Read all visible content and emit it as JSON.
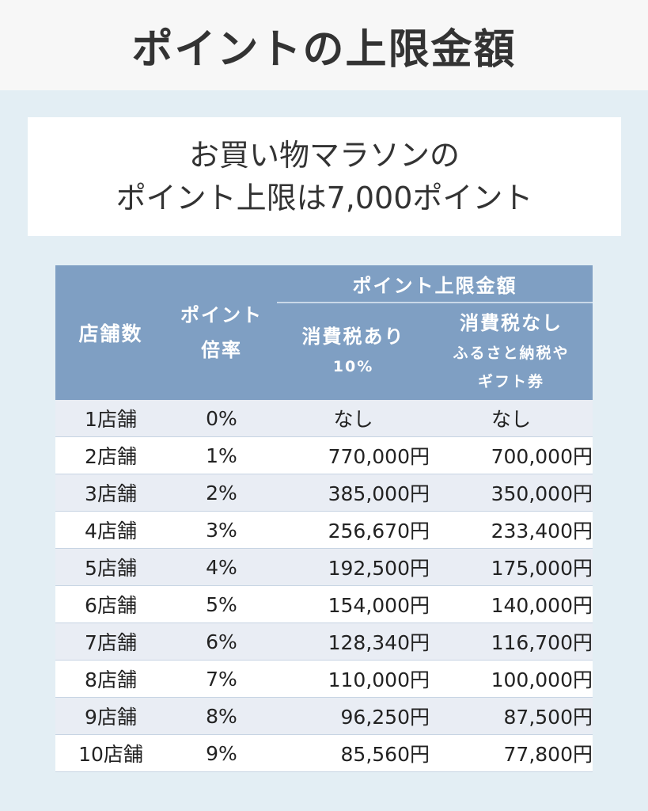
{
  "title": "ポイントの上限金額",
  "subtitle": {
    "line1": "お買い物マラソンの",
    "line2": "ポイント上限は7,000ポイント"
  },
  "table": {
    "headers": {
      "stores": "店舗数",
      "rate_line1": "ポイント",
      "rate_line2": "倍率",
      "group": "ポイント上限金額",
      "with_tax": "消費税あり",
      "with_tax_note": "10%",
      "without_tax": "消費税なし",
      "without_tax_note1": "ふるさと納税や",
      "without_tax_note2": "ギフト券"
    },
    "rows": [
      {
        "stores": "1店舗",
        "rate": "0%",
        "with_tax": "なし",
        "without_tax": "なし"
      },
      {
        "stores": "2店舗",
        "rate": "1%",
        "with_tax": "770,000円",
        "without_tax": "700,000円"
      },
      {
        "stores": "3店舗",
        "rate": "2%",
        "with_tax": "385,000円",
        "without_tax": "350,000円"
      },
      {
        "stores": "4店舗",
        "rate": "3%",
        "with_tax": "256,670円",
        "without_tax": "233,400円"
      },
      {
        "stores": "5店舗",
        "rate": "4%",
        "with_tax": "192,500円",
        "without_tax": "175,000円"
      },
      {
        "stores": "6店舗",
        "rate": "5%",
        "with_tax": "154,000円",
        "without_tax": "140,000円"
      },
      {
        "stores": "7店舗",
        "rate": "6%",
        "with_tax": "128,340円",
        "without_tax": "116,700円"
      },
      {
        "stores": "8店舗",
        "rate": "7%",
        "with_tax": "110,000円",
        "without_tax": "100,000円"
      },
      {
        "stores": "9店舗",
        "rate": "8%",
        "with_tax": "96,250円",
        "without_tax": "87,500円"
      },
      {
        "stores": "10店舗",
        "rate": "9%",
        "with_tax": "85,560円",
        "without_tax": "77,800円"
      }
    ]
  },
  "colors": {
    "background": "#e3eef4",
    "title_bar": "#f7f7f7",
    "header": "#7f9fc3",
    "row_alt": "#e9edf4",
    "text": "#333333"
  }
}
